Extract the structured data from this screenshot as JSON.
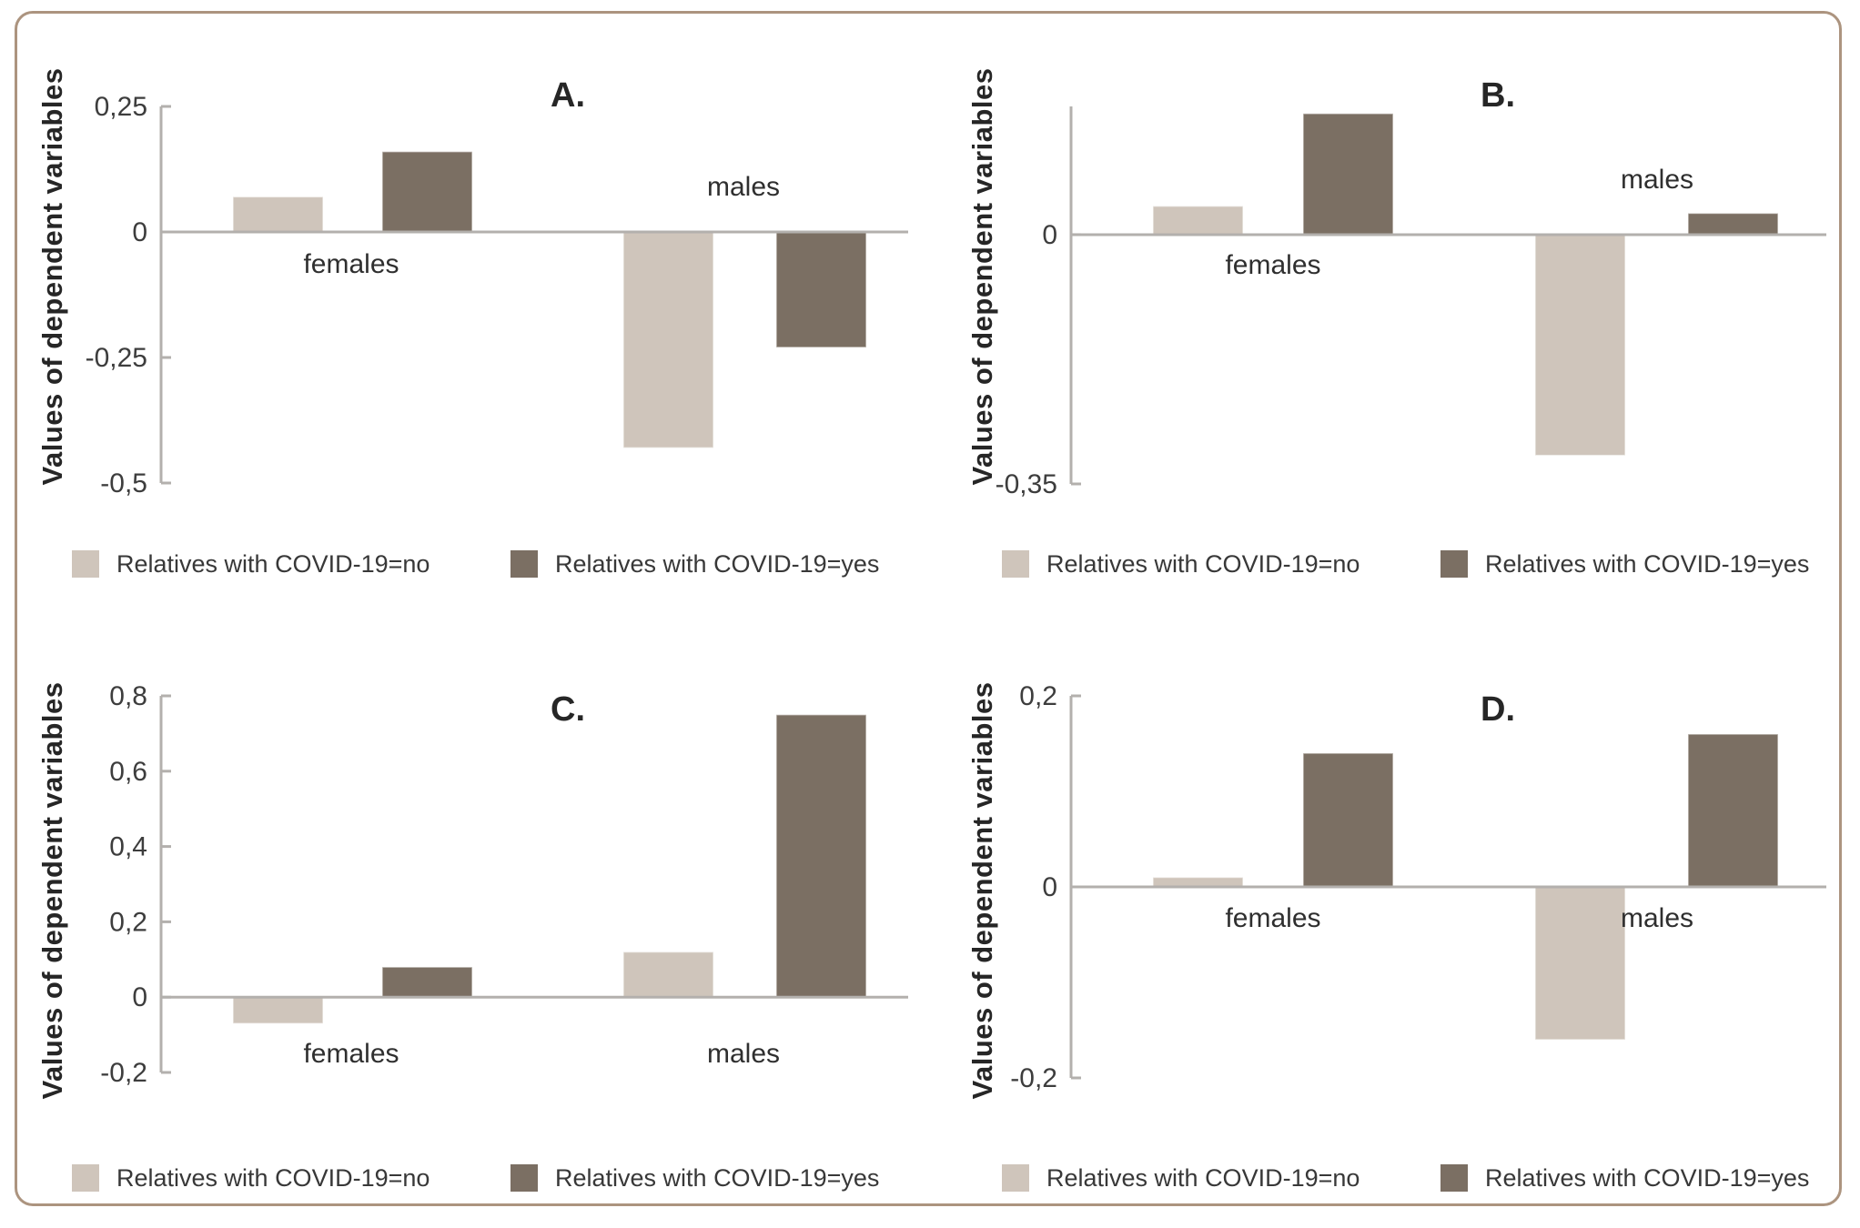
{
  "figure": {
    "y_axis_title": "Values of dependent variables",
    "background_color": "#ffffff",
    "frame_border_color": "#ac947f",
    "axis_line_color": "#b3b0ad",
    "tick_label_color": "#3d3d3d",
    "category_label_color": "#2f2f2f",
    "legend": [
      {
        "label": "Relatives with COVID-19=no",
        "color": "#cfc5bb"
      },
      {
        "label": "Relatives with COVID-19=yes",
        "color": "#7b6f63"
      }
    ]
  },
  "chart_data": [
    {
      "type": "bar",
      "title": "A.",
      "categories": [
        "females",
        "males"
      ],
      "series": [
        {
          "name": "Relatives with COVID-19=no",
          "color": "#cfc5bb",
          "values": [
            0.07,
            -0.43
          ]
        },
        {
          "name": "Relatives with COVID-19=yes",
          "color": "#7b6f63",
          "values": [
            0.16,
            -0.23
          ]
        }
      ],
      "ylabel": "Values of dependent variables",
      "ylim": [
        -0.5,
        0.25
      ],
      "yticks": [
        {
          "value": 0.25,
          "label": "0,25"
        },
        {
          "value": 0,
          "label": "0"
        },
        {
          "value": -0.25,
          "label": "-0,25"
        },
        {
          "value": -0.5,
          "label": "-0,5"
        }
      ],
      "grid": false,
      "legend_position": "bottom"
    },
    {
      "type": "bar",
      "title": "B.",
      "categories": [
        "females",
        "males"
      ],
      "series": [
        {
          "name": "Relatives with COVID-19=no",
          "color": "#cfc5bb",
          "values": [
            0.04,
            -0.31
          ]
        },
        {
          "name": "Relatives with COVID-19=yes",
          "color": "#7b6f63",
          "values": [
            0.17,
            0.03
          ]
        }
      ],
      "ylabel": "Values of dependent variables",
      "ylim": [
        -0.35,
        0.18
      ],
      "yticks": [
        {
          "value": 0,
          "label": "0"
        },
        {
          "value": -0.35,
          "label": "-0,35"
        }
      ],
      "grid": false,
      "legend_position": "bottom"
    },
    {
      "type": "bar",
      "title": "C.",
      "categories": [
        "females",
        "males"
      ],
      "series": [
        {
          "name": "Relatives with COVID-19=no",
          "color": "#cfc5bb",
          "values": [
            -0.07,
            0.12
          ]
        },
        {
          "name": "Relatives with COVID-19=yes",
          "color": "#7b6f63",
          "values": [
            0.08,
            0.75
          ]
        }
      ],
      "ylabel": "Values of dependent variables",
      "ylim": [
        -0.2,
        0.8
      ],
      "yticks": [
        {
          "value": 0.8,
          "label": "0,8"
        },
        {
          "value": 0.6,
          "label": "0,6"
        },
        {
          "value": 0.4,
          "label": "0,4"
        },
        {
          "value": 0.2,
          "label": "0,2"
        },
        {
          "value": 0,
          "label": "0"
        },
        {
          "value": -0.2,
          "label": "-0,2"
        }
      ],
      "grid": false,
      "legend_position": "bottom"
    },
    {
      "type": "bar",
      "title": "D.",
      "categories": [
        "females",
        "males"
      ],
      "series": [
        {
          "name": "Relatives with COVID-19=no",
          "color": "#cfc5bb",
          "values": [
            0.01,
            -0.16
          ]
        },
        {
          "name": "Relatives with COVID-19=yes",
          "color": "#7b6f63",
          "values": [
            0.14,
            0.16
          ]
        }
      ],
      "ylabel": "Values of dependent variables",
      "ylim": [
        -0.2,
        0.2
      ],
      "yticks": [
        {
          "value": 0.2,
          "label": "0,2"
        },
        {
          "value": 0,
          "label": "0"
        },
        {
          "value": -0.2,
          "label": "-0,2"
        }
      ],
      "grid": false,
      "legend_position": "bottom"
    }
  ]
}
